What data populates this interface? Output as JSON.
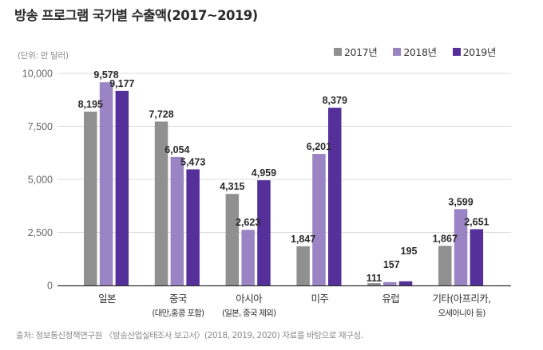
{
  "chart_data": {
    "type": "bar",
    "title": "방송 프로그램 국가별 수출액(2017~2019)",
    "unit_label": "(단위: 만 달러)",
    "xlabel": "",
    "ylabel": "",
    "ylim": [
      0,
      10000
    ],
    "yticks": [
      0,
      2500,
      5000,
      7500,
      10000
    ],
    "ytick_labels": [
      "0",
      "2,500",
      "5,000",
      "7,500",
      "10,000"
    ],
    "grid": true,
    "legend_position": "top-right",
    "categories": [
      {
        "label": "일본",
        "sub": ""
      },
      {
        "label": "중국",
        "sub": "(대만,홍콩 포함)"
      },
      {
        "label": "아시아",
        "sub": "(일본, 중국 제외)"
      },
      {
        "label": "미주",
        "sub": ""
      },
      {
        "label": "유럽",
        "sub": ""
      },
      {
        "label": "기타(아프리카,",
        "sub": "오세아니아 등)"
      }
    ],
    "series": [
      {
        "name": "2017년",
        "color": "#909090",
        "values": [
          8195,
          7728,
          4315,
          1847,
          111,
          1867
        ],
        "labels": [
          "8,195",
          "7,728",
          "4,315",
          "1,847",
          "111",
          "1,867"
        ]
      },
      {
        "name": "2018년",
        "color": "#9a84c4",
        "values": [
          9578,
          6054,
          2623,
          6201,
          157,
          3599
        ],
        "labels": [
          "9,578",
          "6,054",
          "2,623",
          "6,201",
          "157",
          "3,599"
        ]
      },
      {
        "name": "2019년",
        "color": "#56309a",
        "values": [
          9177,
          5473,
          4959,
          8379,
          195,
          2651
        ],
        "labels": [
          "9,177",
          "5,473",
          "4,959",
          "8,379",
          "195",
          "2,651"
        ]
      }
    ],
    "source": "출처: 정보통신정책연구원 〈방송산업실태조사 보고서〉(2018, 2019, 2020) 자료를 바탕으로 재구성."
  }
}
